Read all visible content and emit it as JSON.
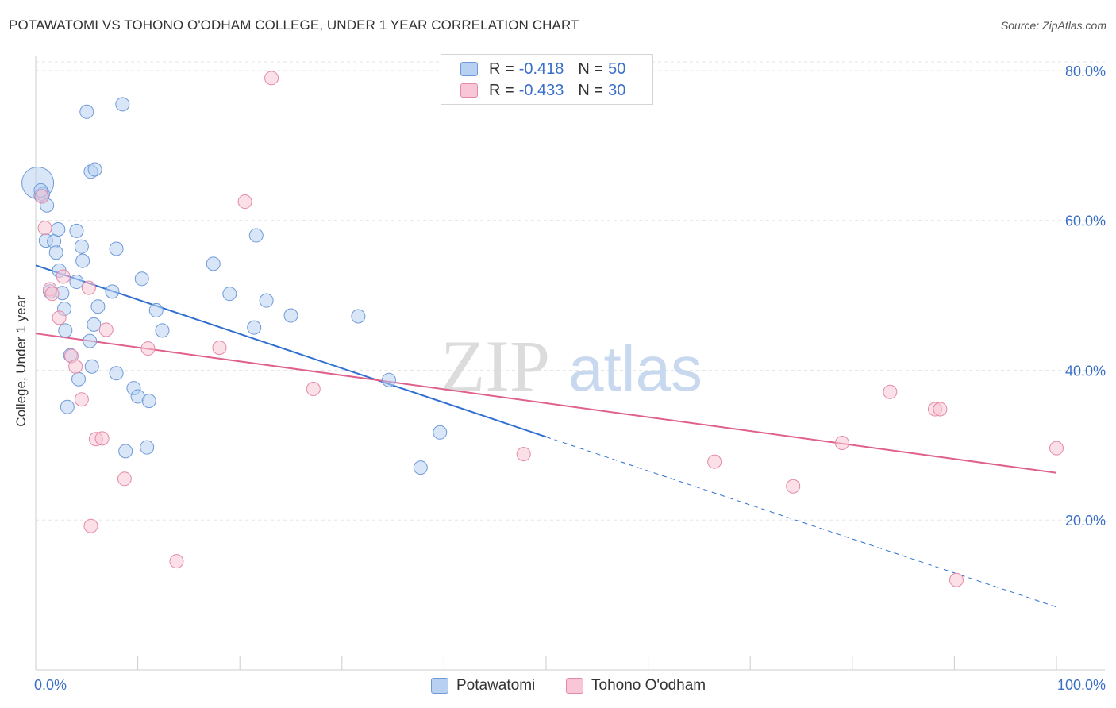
{
  "title": "POTAWATOMI VS TOHONO O'ODHAM COLLEGE, UNDER 1 YEAR CORRELATION CHART",
  "source": "Source: ZipAtlas.com",
  "watermark": {
    "zip": "ZIP",
    "atlas": "atlas"
  },
  "legend": {
    "rows": [
      {
        "r_label": "R =",
        "r_value": "-0.418",
        "n_label": "N =",
        "n_value": "50"
      },
      {
        "r_label": "R =",
        "r_value": "-0.433",
        "n_label": "N =",
        "n_value": "30"
      }
    ]
  },
  "colors": {
    "potawatomi_fill": "#b8d1f3",
    "potawatomi_stroke": "#6f9ad8",
    "potawatomi_line": "#2f6fd0",
    "tohono_fill": "#f8c6d6",
    "tohono_stroke": "#e48aa8",
    "tohono_line": "#e0608c",
    "tick_label": "#3a6fc8",
    "grid": "#e6e6e6"
  },
  "chart_data": {
    "type": "scatter",
    "title": "POTAWATOMI VS TOHONO O'ODHAM COLLEGE, UNDER 1 YEAR CORRELATION CHART",
    "xlabel": "",
    "ylabel": "College, Under 1 year",
    "xlim": [
      0,
      100
    ],
    "ylim": [
      0,
      82
    ],
    "x_tick_labels": [
      "0.0%",
      "100.0%"
    ],
    "y_ticks": [
      20,
      40,
      60,
      80
    ],
    "y_tick_labels": [
      "20.0%",
      "40.0%",
      "60.0%",
      "80.0%"
    ],
    "grid": true,
    "legend_position": "top-center",
    "series": [
      {
        "name": "Potawatomi",
        "points": [
          [
            0.2,
            65.0
          ],
          [
            0.5,
            63.3
          ],
          [
            0.7,
            63.5
          ],
          [
            1.1,
            62.0
          ],
          [
            1.0,
            57.3
          ],
          [
            1.8,
            57.2
          ],
          [
            2.2,
            58.8
          ],
          [
            2.0,
            55.7
          ],
          [
            2.3,
            53.3
          ],
          [
            1.4,
            50.5
          ],
          [
            2.6,
            50.3
          ],
          [
            2.8,
            48.2
          ],
          [
            2.9,
            45.3
          ],
          [
            3.4,
            42.0
          ],
          [
            3.1,
            35.1
          ],
          [
            4.0,
            51.8
          ],
          [
            4.0,
            58.6
          ],
          [
            4.5,
            56.5
          ],
          [
            4.6,
            54.6
          ],
          [
            5.0,
            74.5
          ],
          [
            5.4,
            66.5
          ],
          [
            5.8,
            66.8
          ],
          [
            5.3,
            43.9
          ],
          [
            5.5,
            40.5
          ],
          [
            4.2,
            38.8
          ],
          [
            5.7,
            46.1
          ],
          [
            6.1,
            48.5
          ],
          [
            7.5,
            50.5
          ],
          [
            7.9,
            56.2
          ],
          [
            7.9,
            39.6
          ],
          [
            8.5,
            75.5
          ],
          [
            8.8,
            29.2
          ],
          [
            9.6,
            37.6
          ],
          [
            10.0,
            36.5
          ],
          [
            10.4,
            52.2
          ],
          [
            10.9,
            29.7
          ],
          [
            11.1,
            35.9
          ],
          [
            11.8,
            48.0
          ],
          [
            12.4,
            45.3
          ],
          [
            17.4,
            54.2
          ],
          [
            19.0,
            50.2
          ],
          [
            21.4,
            45.7
          ],
          [
            21.6,
            58.0
          ],
          [
            22.6,
            49.3
          ],
          [
            25.0,
            47.3
          ],
          [
            31.6,
            47.2
          ],
          [
            34.6,
            38.7
          ],
          [
            37.7,
            27.0
          ],
          [
            39.6,
            31.7
          ],
          [
            0.5,
            64.0
          ]
        ]
      },
      {
        "name": "Tohono O'odham",
        "points": [
          [
            0.6,
            63.2
          ],
          [
            0.9,
            59.0
          ],
          [
            1.4,
            50.8
          ],
          [
            1.6,
            50.2
          ],
          [
            2.3,
            47.0
          ],
          [
            2.7,
            52.5
          ],
          [
            3.5,
            41.9
          ],
          [
            3.9,
            40.5
          ],
          [
            4.5,
            36.1
          ],
          [
            5.2,
            51.0
          ],
          [
            5.4,
            19.2
          ],
          [
            5.9,
            30.8
          ],
          [
            6.5,
            30.9
          ],
          [
            6.9,
            45.4
          ],
          [
            8.7,
            25.5
          ],
          [
            11.0,
            42.9
          ],
          [
            13.8,
            14.5
          ],
          [
            18.0,
            43.0
          ],
          [
            20.5,
            62.5
          ],
          [
            23.1,
            79.0
          ],
          [
            27.2,
            37.5
          ],
          [
            47.8,
            28.8
          ],
          [
            66.5,
            27.8
          ],
          [
            74.2,
            24.5
          ],
          [
            79.0,
            30.3
          ],
          [
            83.7,
            37.1
          ],
          [
            88.1,
            34.8
          ],
          [
            88.6,
            34.8
          ],
          [
            90.2,
            12.0
          ],
          [
            100.0,
            29.6
          ]
        ]
      }
    ],
    "trend_lines": [
      {
        "series": "Potawatomi",
        "x": [
          0,
          50
        ],
        "y": [
          54.0,
          31.1
        ],
        "dashed_extension_x": [
          50,
          100
        ],
        "dashed_extension_y": [
          31.1,
          8.4
        ]
      },
      {
        "series": "Tohono O'odham",
        "x": [
          0,
          100
        ],
        "y": [
          44.9,
          26.3
        ]
      }
    ]
  }
}
